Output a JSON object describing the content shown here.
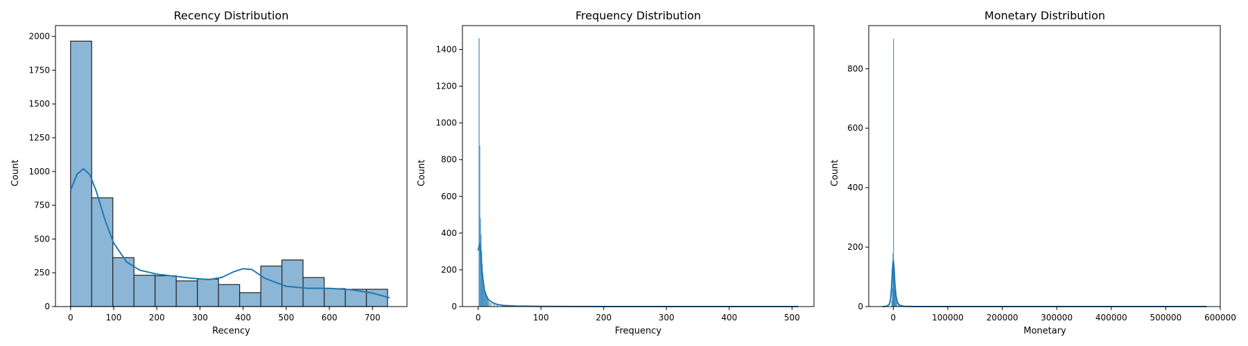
{
  "chart_data": [
    {
      "type": "histogram",
      "title": "Recency Distribution",
      "xlabel": "Recency",
      "ylabel": "Count",
      "xlim": [
        -35,
        780
      ],
      "ylim": [
        0,
        2080
      ],
      "xticks": [
        0,
        100,
        200,
        300,
        400,
        500,
        600,
        700
      ],
      "yticks": [
        0,
        250,
        500,
        750,
        1000,
        1250,
        1500,
        1750,
        2000
      ],
      "bin_width": 49.0,
      "bins": [
        {
          "x0": 0,
          "value": 1965
        },
        {
          "x0": 49,
          "value": 805
        },
        {
          "x0": 98,
          "value": 362
        },
        {
          "x0": 147,
          "value": 232
        },
        {
          "x0": 196,
          "value": 228
        },
        {
          "x0": 245,
          "value": 190
        },
        {
          "x0": 294,
          "value": 203
        },
        {
          "x0": 343,
          "value": 163
        },
        {
          "x0": 392,
          "value": 103
        },
        {
          "x0": 441,
          "value": 300
        },
        {
          "x0": 490,
          "value": 345
        },
        {
          "x0": 539,
          "value": 215
        },
        {
          "x0": 588,
          "value": 133
        },
        {
          "x0": 637,
          "value": 128
        },
        {
          "x0": 686,
          "value": 128
        }
      ],
      "kde": {
        "x": [
          0,
          15,
          30,
          45,
          60,
          80,
          100,
          130,
          160,
          200,
          240,
          280,
          320,
          350,
          380,
          400,
          420,
          450,
          500,
          550,
          600,
          650,
          700,
          740
        ],
        "y": [
          860,
          980,
          1020,
          975,
          850,
          640,
          470,
          330,
          270,
          240,
          225,
          210,
          200,
          215,
          260,
          280,
          275,
          210,
          150,
          135,
          135,
          125,
          100,
          65
        ]
      },
      "colors": {
        "bar_fill": "#8bb6d6",
        "bar_edge": "#222222",
        "kde": "#1f77b4"
      }
    },
    {
      "type": "histogram",
      "title": "Frequency Distribution",
      "xlabel": "Frequency",
      "ylabel": "Count",
      "xlim": [
        -25,
        535
      ],
      "ylim": [
        0,
        1530
      ],
      "xticks": [
        0,
        100,
        200,
        300,
        400,
        500
      ],
      "yticks": [
        0,
        200,
        400,
        600,
        800,
        1000,
        1200,
        1400
      ],
      "bin_width": 1,
      "bins": [
        {
          "x0": 1,
          "value": 1460
        },
        {
          "x0": 2,
          "value": 875
        },
        {
          "x0": 3,
          "value": 480
        },
        {
          "x0": 4,
          "value": 390
        },
        {
          "x0": 5,
          "value": 300
        },
        {
          "x0": 6,
          "value": 230
        },
        {
          "x0": 7,
          "value": 180
        },
        {
          "x0": 8,
          "value": 140
        },
        {
          "x0": 9,
          "value": 110
        },
        {
          "x0": 10,
          "value": 85
        },
        {
          "x0": 11,
          "value": 70
        },
        {
          "x0": 12,
          "value": 58
        },
        {
          "x0": 13,
          "value": 48
        },
        {
          "x0": 14,
          "value": 40
        },
        {
          "x0": 15,
          "value": 34
        },
        {
          "x0": 17,
          "value": 26
        },
        {
          "x0": 20,
          "value": 18
        },
        {
          "x0": 25,
          "value": 12
        },
        {
          "x0": 30,
          "value": 8
        },
        {
          "x0": 40,
          "value": 5
        },
        {
          "x0": 60,
          "value": 3
        },
        {
          "x0": 100,
          "value": 2
        },
        {
          "x0": 200,
          "value": 1
        },
        {
          "x0": 510,
          "value": 1
        }
      ],
      "kde": {
        "x": [
          0,
          1,
          2,
          3,
          4,
          5,
          6,
          8,
          10,
          13,
          16,
          20,
          25,
          30,
          40,
          60,
          100,
          200,
          300,
          400,
          510
        ],
        "y": [
          305,
          320,
          335,
          340,
          300,
          250,
          200,
          140,
          90,
          60,
          40,
          28,
          18,
          12,
          6,
          3,
          1,
          0,
          0,
          0,
          0
        ]
      },
      "colors": {
        "bar_fill": "#8bb6d6",
        "bar_edge": "#1f77b4",
        "kde": "#1f77b4"
      }
    },
    {
      "type": "histogram",
      "title": "Monetary Distribution",
      "xlabel": "Monetary",
      "ylabel": "Count",
      "xlim": [
        -45000,
        600000
      ],
      "ylim": [
        0,
        945
      ],
      "xticks": [
        0,
        100000,
        200000,
        300000,
        400000,
        500000,
        600000
      ],
      "yticks": [
        0,
        200,
        400,
        600,
        800
      ],
      "bin_width": 400,
      "bins": [
        {
          "x0": -3000,
          "value": 20
        },
        {
          "x0": -2000,
          "value": 60
        },
        {
          "x0": -1000,
          "value": 180
        },
        {
          "x0": 0,
          "value": 900
        },
        {
          "x0": 400,
          "value": 160
        },
        {
          "x0": 800,
          "value": 140
        },
        {
          "x0": 1600,
          "value": 110
        },
        {
          "x0": 2400,
          "value": 80
        },
        {
          "x0": 3200,
          "value": 60
        },
        {
          "x0": 4500,
          "value": 40
        },
        {
          "x0": 6000,
          "value": 25
        },
        {
          "x0": 9000,
          "value": 12
        },
        {
          "x0": 15000,
          "value": 5
        },
        {
          "x0": 30000,
          "value": 2
        },
        {
          "x0": 570000,
          "value": 1
        }
      ],
      "kde": {
        "x": [
          -20000,
          -12000,
          -7000,
          -5000,
          -3000,
          -1500,
          0,
          1500,
          3000,
          5000,
          8000,
          12000,
          20000,
          40000,
          100000,
          300000,
          575000
        ],
        "y": [
          0,
          1,
          8,
          25,
          70,
          125,
          155,
          130,
          75,
          35,
          12,
          4,
          1,
          0,
          0,
          0,
          0
        ]
      },
      "colors": {
        "bar_fill": "#8bb6d6",
        "bar_edge": "#1f77b4",
        "kde": "#1f77b4"
      }
    }
  ]
}
